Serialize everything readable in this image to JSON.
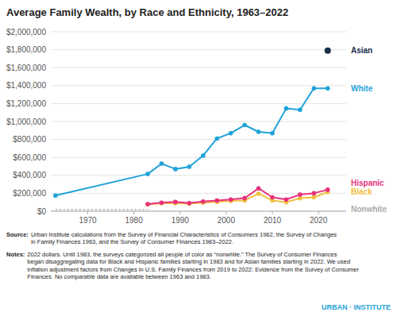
{
  "chart_data": {
    "type": "line",
    "title": "Average Family Wealth, by Race and Ethnicity, 1963–2022",
    "xlim": [
      1962,
      2026
    ],
    "xticks": [
      1970,
      1980,
      1990,
      2000,
      2010,
      2020
    ],
    "ylim": [
      0,
      2000000
    ],
    "yticks": [
      {
        "value": 0,
        "label": "$0"
      },
      {
        "value": 200000,
        "label": "$200,000"
      },
      {
        "value": 400000,
        "label": "$400,000"
      },
      {
        "value": 600000,
        "label": "$600,000"
      },
      {
        "value": 800000,
        "label": "$800,000"
      },
      {
        "value": 1000000,
        "label": "$1,000,000"
      },
      {
        "value": 1200000,
        "label": "$1,200,000"
      },
      {
        "value": 1400000,
        "label": "$1,400,000"
      },
      {
        "value": 1600000,
        "label": "$1,600,000"
      },
      {
        "value": 1800000,
        "label": "$1,800,000"
      },
      {
        "value": 2000000,
        "label": "$2,000,000"
      }
    ],
    "grid": true,
    "series": [
      {
        "name": "Nonwhite",
        "color": "#aaaaaa",
        "line_style": "dotted",
        "marker": "none",
        "x": [
          1963,
          1983
        ],
        "values": [
          18000,
          18000
        ]
      },
      {
        "name": "White",
        "color": "#1fa3d9",
        "line_style": "solid",
        "marker": "circle",
        "x": [
          1963,
          1983,
          1986,
          1989,
          1992,
          1995,
          1998,
          2001,
          2004,
          2007,
          2010,
          2013,
          2016,
          2019,
          2022
        ],
        "values": [
          175000,
          415000,
          530000,
          470000,
          495000,
          620000,
          810000,
          870000,
          960000,
          885000,
          870000,
          1145000,
          1130000,
          1370000,
          1370000
        ]
      },
      {
        "name": "Black",
        "color": "#f0c040",
        "line_style": "solid",
        "marker": "circle",
        "x": [
          1983,
          1986,
          1989,
          1992,
          1995,
          1998,
          2001,
          2004,
          2007,
          2010,
          2013,
          2016,
          2019,
          2022
        ],
        "values": [
          75000,
          88000,
          90000,
          83000,
          95000,
          105000,
          115000,
          120000,
          195000,
          120000,
          100000,
          145000,
          155000,
          215000
        ]
      },
      {
        "name": "Hispanic",
        "color": "#e8317a",
        "line_style": "solid",
        "marker": "circle",
        "x": [
          1983,
          1986,
          1989,
          1992,
          1995,
          1998,
          2001,
          2004,
          2007,
          2010,
          2013,
          2016,
          2019,
          2022
        ],
        "values": [
          80000,
          95000,
          103000,
          90000,
          108000,
          120000,
          130000,
          145000,
          255000,
          155000,
          130000,
          185000,
          200000,
          240000
        ]
      },
      {
        "name": "Asian",
        "color": "#1a2e4a",
        "line_style": "none",
        "marker": "circle",
        "x": [
          2022
        ],
        "values": [
          1790000
        ]
      }
    ],
    "source_label": "Source:",
    "source": "Urban Institute calculations from the Survey of Financial Characteristics of Consumers 1962, the Survey of Changes\nin Family Finances 1963, and the Survey of Consumer Finances 1983–2022.",
    "notes_label": "Notes:",
    "notes": "2022 dollars. Until 1983, the surveys categorized all people of color as “nonwhite.” The Survey of Consumer Finances\nbegan disaggregating data for Black and Hispanic families starting in 1983 and for Asian families starting in 2022. We used\ninflation adjustment factors from Changes in U.S. Family Finances from 2019 to 2022: Evidence from the Survey of Consumer\nFinances. No comparable data are available between 1963 and 1983.",
    "footer": "URBAN · INSTITUTE"
  }
}
